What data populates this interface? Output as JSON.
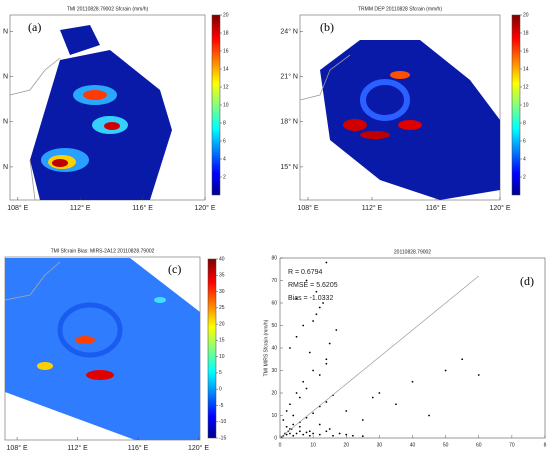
{
  "chart_data": [
    {
      "type": "map",
      "panel_label": "(a)",
      "title": "TMI 20110828.79002 Sfcrain (mm/h)",
      "xlim": [
        107.5,
        120
      ],
      "xticks": [
        {
          "value": 108,
          "label": "108° E"
        },
        {
          "value": 112,
          "label": "112° E"
        },
        {
          "value": 116,
          "label": "116° E"
        },
        {
          "value": 120,
          "label": "120° E"
        }
      ],
      "ylim": [
        12.8,
        25.1
      ],
      "yticks": [
        {
          "value": 24,
          "label": "N"
        },
        {
          "value": 21,
          "label": "N"
        },
        {
          "value": 18,
          "label": "N"
        },
        {
          "value": 15,
          "label": "N"
        }
      ],
      "colorbar": {
        "lim": [
          0,
          20
        ],
        "ticks": [
          2,
          4,
          6,
          8,
          10,
          12,
          14,
          16,
          18,
          20
        ]
      }
    },
    {
      "type": "map",
      "panel_label": "(b)",
      "title": "TRMM DEP 20110828 Sfcrain (mm/h)",
      "xlim": [
        107.5,
        120
      ],
      "xticks": [
        {
          "value": 108,
          "label": "108° E"
        },
        {
          "value": 112,
          "label": "112° E"
        },
        {
          "value": 116,
          "label": "116° E"
        },
        {
          "value": 120,
          "label": "120° E"
        }
      ],
      "ylim": [
        12.8,
        25.1
      ],
      "yticks": [
        {
          "value": 24,
          "label": "24° N"
        },
        {
          "value": 21,
          "label": "21° N"
        },
        {
          "value": 18,
          "label": "18° N"
        },
        {
          "value": 15,
          "label": "15° N"
        }
      ],
      "colorbar": {
        "lim": [
          0,
          20
        ],
        "ticks": [
          2,
          4,
          6,
          8,
          10,
          12,
          14,
          16,
          18,
          20
        ]
      }
    },
    {
      "type": "map",
      "panel_label": "(c)",
      "title": "TMI Sfcrain Bias: MIRS-2A12 20110828.79002",
      "xlim": [
        107.2,
        120.1
      ],
      "xticks": [
        {
          "value": 108,
          "label": "108° E"
        },
        {
          "value": 112,
          "label": "112° E"
        },
        {
          "value": 116,
          "label": "116° E"
        },
        {
          "value": 120,
          "label": "120° E"
        }
      ],
      "colorbar": {
        "lim": [
          -15,
          40
        ],
        "ticks": [
          -15,
          -10,
          -5,
          0,
          5,
          10,
          15,
          20,
          25,
          30,
          35,
          40
        ]
      }
    },
    {
      "type": "scatter",
      "panel_label": "(d)",
      "title": "20110828.79002",
      "y_label": "TMI MIRS Sfcrain (mm/h)",
      "annotations": [
        "R = 0.6794",
        "RMSE = 5.6205",
        "Bias = -1.0332"
      ],
      "xlim": [
        0,
        80
      ],
      "xticks": [
        0,
        10,
        20,
        30,
        40,
        50,
        60,
        70,
        {
          "value": 80,
          "label": "8"
        }
      ],
      "ylim": [
        0,
        80
      ],
      "yticks": [
        0,
        10,
        20,
        30,
        40,
        50,
        60,
        70,
        80
      ],
      "fit": {
        "x": [
          0,
          60
        ],
        "y": [
          0,
          72
        ]
      },
      "x": [
        0.5,
        1,
        1.5,
        2,
        2.5,
        3,
        3.5,
        4,
        5,
        6,
        7,
        8,
        9,
        10,
        12,
        14,
        16,
        18,
        20,
        22,
        25,
        1,
        2,
        3,
        4,
        5,
        6,
        7,
        8,
        10,
        12,
        14,
        3,
        5,
        7,
        9,
        11,
        13,
        15,
        2,
        4,
        6,
        8,
        10,
        12,
        14,
        16,
        5,
        8,
        11,
        14,
        17,
        30,
        35,
        40,
        45,
        50,
        55,
        60,
        3,
        6,
        9,
        12,
        15,
        10,
        12,
        14,
        20,
        25,
        28
      ],
      "y": [
        0.5,
        1,
        2,
        1.5,
        3,
        2,
        4,
        1,
        2,
        3,
        1.5,
        2.5,
        1,
        2,
        1.5,
        3,
        1,
        2,
        1.5,
        1,
        0.8,
        8,
        12,
        15,
        10,
        20,
        18,
        25,
        22,
        30,
        28,
        35,
        40,
        45,
        50,
        38,
        55,
        60,
        42,
        5,
        6,
        7,
        9,
        11,
        14,
        16,
        19,
        62,
        70,
        65,
        78,
        48,
        20,
        15,
        25,
        10,
        30,
        35,
        28,
        4,
        5,
        3,
        6,
        4,
        52,
        58,
        33,
        12,
        8,
        18
      ]
    }
  ]
}
